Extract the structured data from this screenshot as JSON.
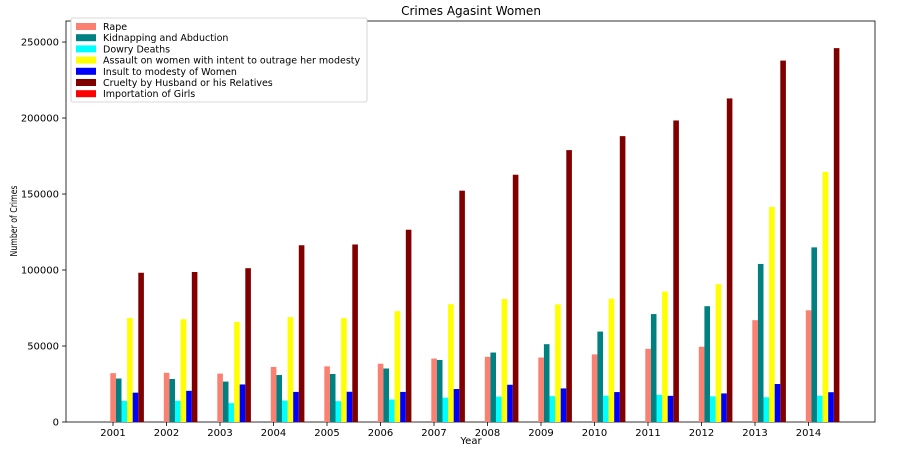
{
  "chart_data": {
    "type": "bar",
    "title": "Crimes Agasint Women",
    "xlabel": "Year",
    "ylabel": "Number of Crimes",
    "ylim": [
      0,
      260000
    ],
    "yticks": [
      0,
      50000,
      100000,
      150000,
      200000,
      250000
    ],
    "ytick_labels": [
      "0",
      "50000",
      "100000",
      "150000",
      "200000",
      "250000"
    ],
    "legend_position": "top-left",
    "grid": false,
    "categories": [
      "2001",
      "2002",
      "2003",
      "2004",
      "2005",
      "2006",
      "2007",
      "2008",
      "2009",
      "2010",
      "2011",
      "2012",
      "2013",
      "2014"
    ],
    "series": [
      {
        "name": "Rape",
        "color": "#fa8072",
        "values": [
          32150,
          32373,
          31847,
          36235,
          36617,
          38348,
          41734,
          42906,
          42420,
          44481,
          48160,
          49529,
          67000,
          73500
        ]
      },
      {
        "name": "Kidnapping and Abduction",
        "color": "#008080",
        "values": [
          28600,
          28300,
          26600,
          30900,
          31600,
          35200,
          40800,
          45700,
          51200,
          59500,
          71000,
          76200,
          104000,
          114900
        ]
      },
      {
        "name": "Dowry Deaths",
        "color": "#00ffff",
        "values": [
          13900,
          13900,
          12400,
          14100,
          13700,
          14800,
          16000,
          16700,
          17000,
          17300,
          17800,
          16900,
          16300,
          17300
        ]
      },
      {
        "name": "Assault on women with intent to outrage her modesty",
        "color": "#ffff00",
        "values": [
          68400,
          67600,
          65800,
          69000,
          68300,
          72900,
          77500,
          80900,
          77400,
          81100,
          85800,
          90700,
          141500,
          164600
        ]
      },
      {
        "name": "Insult to modesty of Women",
        "color": "#0000ff",
        "values": [
          19300,
          20500,
          24700,
          19800,
          19900,
          19800,
          21700,
          24500,
          22100,
          19700,
          17200,
          18800,
          25000,
          19600
        ]
      },
      {
        "name": "Cruelty by Husband or his Relatives",
        "color": "#800000",
        "values": [
          98200,
          98700,
          101200,
          116300,
          116800,
          126500,
          152200,
          162700,
          178900,
          188100,
          198400,
          212900,
          237800,
          246000
        ]
      },
      {
        "name": "Importation of Girls",
        "color": "#ff0000",
        "values": [
          100,
          70,
          50,
          90,
          120,
          70,
          70,
          70,
          50,
          40,
          80,
          60,
          30,
          15
        ]
      }
    ]
  }
}
